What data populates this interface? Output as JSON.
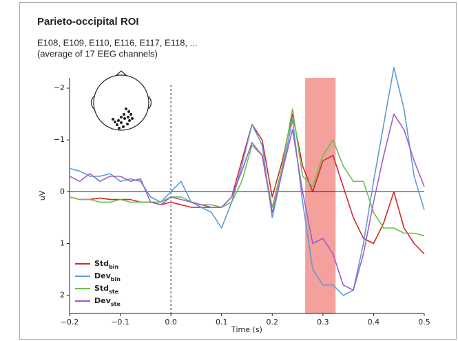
{
  "chart_data": {
    "type": "line",
    "title": "Parieto-occipital ROI",
    "subtitle": [
      "E108, E109, E110, E116, E117, E118, ...",
      "(average of 17 EEG channels)"
    ],
    "xlabel": "Time (s)",
    "ylabel": "uV",
    "x": [
      -0.2,
      -0.18,
      -0.16,
      -0.14,
      -0.12,
      -0.1,
      -0.08,
      -0.06,
      -0.04,
      -0.02,
      0,
      0.02,
      0.04,
      0.06,
      0.08,
      0.1,
      0.12,
      0.14,
      0.16,
      0.18,
      0.2,
      0.22,
      0.24,
      0.26,
      0.28,
      0.3,
      0.32,
      0.34,
      0.36,
      0.38,
      0.4,
      0.42,
      0.44,
      0.46,
      0.48,
      0.5
    ],
    "series": [
      {
        "name": "Std",
        "subscript": "bin",
        "color": "#d62728",
        "values": [
          0.1,
          0.15,
          0.15,
          0.12,
          0.15,
          0.15,
          0.15,
          0.2,
          0.2,
          0.25,
          0.2,
          0.25,
          0.3,
          0.3,
          0.3,
          0.3,
          0.1,
          -0.6,
          -1.3,
          -1.0,
          0.1,
          -0.6,
          -1.5,
          -0.5,
          0.0,
          -0.6,
          -0.7,
          -0.1,
          0.5,
          0.9,
          1.0,
          0.6,
          0.0,
          0.7,
          1.0,
          1.2
        ]
      },
      {
        "name": "Dev",
        "subscript": "bin",
        "color": "#5b9bd5",
        "values": [
          -0.45,
          -0.4,
          -0.3,
          -0.3,
          -0.35,
          -0.2,
          -0.25,
          -0.2,
          0.1,
          0.2,
          0.0,
          -0.2,
          0.2,
          0.3,
          0.4,
          0.7,
          0.2,
          -0.5,
          -1.3,
          -0.9,
          0.5,
          -0.4,
          -1.4,
          0.2,
          1.5,
          1.8,
          1.8,
          2.0,
          1.9,
          1.0,
          -0.2,
          -1.3,
          -2.4,
          -1.6,
          -0.3,
          0.35
        ]
      },
      {
        "name": "Std",
        "subscript": "ste",
        "color": "#6abf4b",
        "values": [
          0.1,
          0.15,
          0.15,
          0.2,
          0.2,
          0.15,
          0.2,
          0.2,
          0.2,
          0.2,
          0.1,
          0.1,
          0.2,
          0.25,
          0.25,
          0.3,
          0.2,
          -0.2,
          -0.9,
          -0.7,
          0.3,
          -0.5,
          -1.6,
          -0.3,
          -0.1,
          -0.7,
          -1.0,
          -0.5,
          -0.2,
          -0.2,
          0.4,
          0.7,
          0.7,
          0.8,
          0.8,
          0.85
        ]
      },
      {
        "name": "Dev",
        "subscript": "ste",
        "color": "#a05cc8",
        "values": [
          -0.3,
          -0.2,
          -0.35,
          -0.2,
          -0.3,
          -0.3,
          -0.2,
          -0.25,
          0.2,
          0.25,
          0.1,
          0.15,
          0.2,
          0.25,
          0.3,
          0.3,
          0.1,
          -0.4,
          -0.95,
          -0.7,
          0.4,
          -0.4,
          -1.2,
          0.0,
          1.0,
          0.9,
          1.2,
          1.8,
          1.9,
          1.2,
          0.2,
          -0.7,
          -1.5,
          -1.2,
          -0.6,
          -0.1
        ]
      }
    ],
    "xlim": [
      -0.2,
      0.5
    ],
    "ylim": [
      -2.2,
      2.35
    ],
    "y_inverted": true,
    "xticks": [
      {
        "value": -0.2,
        "label": "−0.2"
      },
      {
        "value": -0.1,
        "label": "−0.1"
      },
      {
        "value": 0,
        "label": "0.0"
      },
      0.1,
      0.2,
      0.3,
      0.4,
      0.5
    ],
    "yticks": [
      {
        "value": -2,
        "label": "−2"
      },
      {
        "value": -1,
        "label": "−1"
      },
      0,
      1,
      2
    ],
    "highlight_span": [
      0.265,
      0.325
    ],
    "highlight_color": "#f4a09c",
    "event_time": 0,
    "baseline": 0,
    "legend": "lower left"
  }
}
